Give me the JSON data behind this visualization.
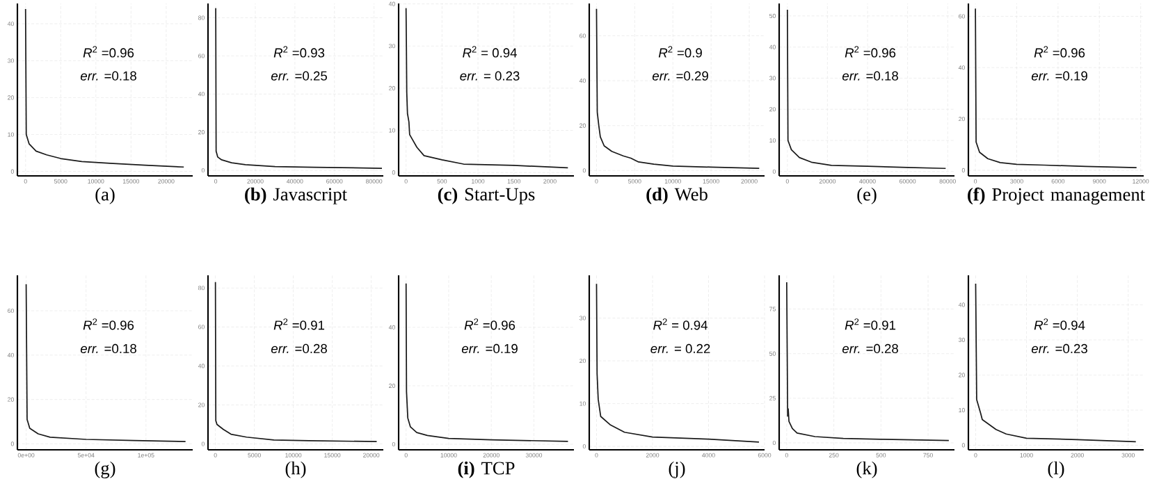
{
  "chart_data": [
    {
      "type": "line",
      "title": "(a)",
      "x": [
        0,
        100,
        500,
        1500,
        3000,
        5000,
        8000,
        12000,
        17000,
        22500
      ],
      "values": [
        44,
        10,
        7.5,
        5.5,
        4.5,
        3.5,
        2.7,
        2.2,
        1.7,
        1.2
      ],
      "color": "#1a1a1a",
      "xlim": [
        -1160,
        23770
      ],
      "ylim": [
        -1.2,
        45.5
      ],
      "xticks": [
        0,
        5000,
        10000,
        15000,
        20000
      ],
      "yticks": [
        0,
        10,
        20,
        30,
        40
      ],
      "grid": true,
      "annotations": [
        "*R*$^{2}$ =0.96",
        "*err.* =0.18"
      ]
    },
    {
      "type": "line",
      "title": "**(b)** Javascript",
      "x": [
        0,
        200,
        1000,
        3000,
        8000,
        15000,
        30000,
        50000,
        84000
      ],
      "values": [
        85,
        10,
        7,
        5.5,
        4,
        3,
        2,
        1.6,
        1.1
      ],
      "color": "#1a1a1a",
      "xlim": [
        -3900,
        84700
      ],
      "ylim": [
        -2.9,
        87.5
      ],
      "xticks": [
        0,
        20000,
        40000,
        60000,
        80000
      ],
      "yticks": [
        0,
        20,
        40,
        60,
        80
      ],
      "grid": true,
      "annotations": [
        "*R*$^{2}$ =0.93",
        "*err.* =0.25"
      ]
    },
    {
      "type": "line",
      "title": "**(c)** Start-Ups",
      "x": [
        0,
        5,
        10,
        20,
        40,
        50,
        100,
        150,
        250,
        500,
        800,
        1500,
        2250
      ],
      "values": [
        39,
        30,
        19,
        14,
        12,
        9,
        7.5,
        6,
        4,
        3,
        2,
        1.7,
        1.1
      ],
      "color": "#1a1a1a",
      "xlim": [
        -103,
        2334
      ],
      "ylim": [
        -0.8,
        40.1
      ],
      "xticks": [
        0,
        500,
        1000,
        1500,
        2000
      ],
      "yticks": [
        0,
        10,
        20,
        30,
        40
      ],
      "grid": true,
      "annotations": [
        "*R*$^{2}$ = 0.94",
        "*err.* = 0.23"
      ]
    },
    {
      "type": "line",
      "title": "**(d)** Web",
      "x": [
        0,
        100,
        300,
        500,
        1000,
        2000,
        3500,
        4500,
        5500,
        7500,
        10000,
        15000,
        21300
      ],
      "values": [
        72,
        26,
        20,
        15,
        11,
        8.5,
        6.5,
        5.5,
        3.8,
        2.8,
        2,
        1.5,
        1
      ],
      "color": "#1a1a1a",
      "xlim": [
        -950,
        22000
      ],
      "ylim": [
        -2.4,
        74.4
      ],
      "xticks": [
        0,
        5000,
        10000,
        15000,
        20000
      ],
      "yticks": [
        0,
        20,
        40,
        60
      ],
      "grid": true,
      "annotations": [
        "*R*$^{2}$ =0.9",
        "*err.* =0.29"
      ]
    },
    {
      "type": "line",
      "title": "(e)",
      "x": [
        0,
        300,
        2000,
        6000,
        12000,
        22000,
        40000,
        60000,
        79000
      ],
      "values": [
        52,
        10,
        7,
        4.5,
        3,
        2,
        1.7,
        1.3,
        1
      ],
      "color": "#1a1a1a",
      "xlim": [
        -4100,
        83400
      ],
      "ylim": [
        -1.4,
        54
      ],
      "xticks": [
        0,
        20000,
        40000,
        60000,
        80000
      ],
      "yticks": [
        0,
        10,
        20,
        30,
        40,
        50
      ],
      "grid": true,
      "annotations": [
        "*R*$^{2}$ =0.96",
        "*err.* =0.18"
      ]
    },
    {
      "type": "line",
      "title": "**(f)** Project management",
      "x": [
        0,
        50,
        300,
        900,
        1800,
        3000,
        5000,
        8000,
        11700
      ],
      "values": [
        63,
        11,
        7,
        4.5,
        3,
        2.3,
        2,
        1.5,
        1
      ],
      "color": "#1a1a1a",
      "xlim": [
        -510,
        12220
      ],
      "ylim": [
        -2.2,
        65
      ],
      "xticks": [
        0,
        3000,
        6000,
        9000,
        12000
      ],
      "yticks": [
        0,
        20,
        40,
        60
      ],
      "grid": true,
      "annotations": [
        "*R*$^{2}$ =0.96",
        "*err.* =0.19"
      ]
    },
    {
      "type": "line",
      "title": "(g)",
      "x": [
        0,
        800,
        3000,
        10000,
        20000,
        50000,
        90000,
        133000
      ],
      "values": [
        72,
        11,
        7,
        4.5,
        3,
        2,
        1.5,
        1
      ],
      "color": "#1a1a1a",
      "xlim": [
        -7300,
        139000
      ],
      "ylim": [
        -2.7,
        76
      ],
      "xticks": [
        {
          "value": 0,
          "label": "0e+00"
        },
        {
          "value": 50000,
          "label": "5e+04"
        },
        {
          "value": 100000,
          "label": "1e+05"
        }
      ],
      "yticks": [
        0,
        20,
        40,
        60
      ],
      "grid": true,
      "annotations": [
        "*R*$^{2}$ =0.96",
        "*err.* =0.18"
      ]
    },
    {
      "type": "line",
      "title": "(h)",
      "x": [
        0,
        50,
        200,
        1000,
        2000,
        4000,
        7500,
        12000,
        20700
      ],
      "values": [
        83,
        12,
        10,
        7.5,
        5,
        3.5,
        2,
        1.7,
        1.2
      ],
      "color": "#1a1a1a",
      "xlim": [
        -950,
        21550
      ],
      "ylim": [
        -3,
        86.5
      ],
      "xticks": [
        0,
        5000,
        10000,
        15000,
        20000
      ],
      "yticks": [
        0,
        20,
        40,
        60,
        80
      ],
      "grid": true,
      "annotations": [
        "*R*$^{2}$ =0.91",
        "*err.* =0.28"
      ]
    },
    {
      "type": "line",
      "title": "**(i)** TCP",
      "x": [
        0,
        100,
        400,
        1000,
        2500,
        5000,
        10000,
        20000,
        38000
      ],
      "values": [
        55,
        18,
        9,
        6,
        4,
        3,
        2,
        1.5,
        1
      ],
      "color": "#1a1a1a",
      "xlim": [
        -1750,
        39400
      ],
      "ylim": [
        -1.9,
        57.8
      ],
      "xticks": [
        0,
        10000,
        20000,
        30000
      ],
      "yticks": [
        0,
        20,
        40
      ],
      "grid": true,
      "annotations": [
        "*R*$^{2}$ =0.96",
        "*err.* =0.19"
      ]
    },
    {
      "type": "line",
      "title": "(j)",
      "x": [
        0,
        20,
        60,
        150,
        500,
        1000,
        2000,
        4000,
        5800
      ],
      "values": [
        38,
        17,
        11,
        7,
        5,
        3.3,
        2.2,
        1.7,
        1
      ],
      "color": "#1a1a1a",
      "xlim": [
        -260,
        6000
      ],
      "ylim": [
        -0.8,
        40
      ],
      "xticks": [
        0,
        2000,
        4000,
        6000
      ],
      "yticks": [
        0,
        10,
        20,
        30
      ],
      "grid": true,
      "annotations": [
        "*R*$^{2}$ = 0.94",
        "*err.* = 0.22"
      ]
    },
    {
      "type": "line",
      "title": "(k)",
      "x": [
        0,
        5,
        8,
        12,
        30,
        55,
        150,
        300,
        500,
        860
      ],
      "values": [
        90,
        15,
        19,
        12,
        8,
        5.5,
        3.5,
        2.5,
        2,
        1.3
      ],
      "color": "#1a1a1a",
      "xlim": [
        -40,
        890
      ],
      "ylim": [
        -3.9,
        93.9
      ],
      "xticks": [
        0,
        250,
        500,
        750
      ],
      "yticks": [
        0,
        25,
        50,
        75
      ],
      "grid": true,
      "annotations": [
        "*R*$^{2}$ =0.91",
        "*err.* =0.28"
      ]
    },
    {
      "type": "line",
      "title": "(l)",
      "x": [
        0,
        20,
        100,
        130,
        400,
        600,
        1000,
        2000,
        3150
      ],
      "values": [
        46,
        13,
        9,
        7.3,
        4.5,
        3.2,
        2,
        1.6,
        1
      ],
      "color": "#1a1a1a",
      "xlim": [
        -143,
        3305
      ],
      "ylim": [
        -1.3,
        48.4
      ],
      "xticks": [
        0,
        1000,
        2000,
        3000
      ],
      "yticks": [
        0,
        10,
        20,
        30,
        40
      ],
      "grid": true,
      "annotations": [
        "*R*$^{2}$ =0.94",
        "*err.* =0.23"
      ]
    }
  ]
}
